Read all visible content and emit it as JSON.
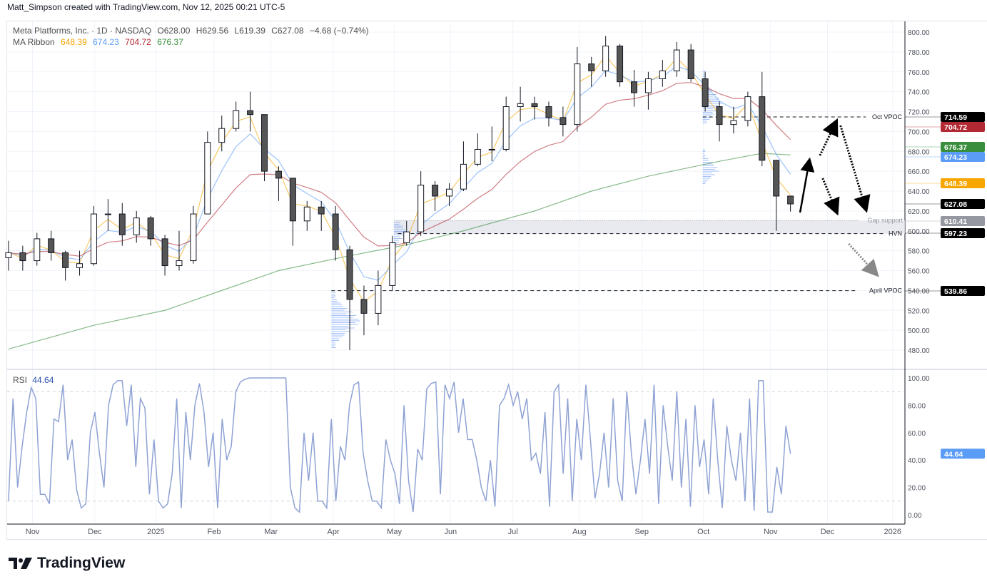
{
  "header": {
    "credit": "Matt_Simpson created with TradingView.com, Nov 12, 2025 00:21 UTC-5"
  },
  "legend": {
    "symbol": "Meta Platforms, Inc. · 1D · NASDAQ",
    "open": "O628.00",
    "high": "H629.56",
    "low": "L619.39",
    "close": "C627.08",
    "change": "−4.68 (−0.74%)",
    "ma_label": "MA Ribbon",
    "ma_values": [
      "648.39",
      "674.23",
      "704.72",
      "676.37"
    ],
    "ma_colors": [
      "#f7a600",
      "#5b9cf6",
      "#b22833",
      "#388e3c"
    ]
  },
  "rsi": {
    "label": "RSI",
    "value": "44.64",
    "color": "#8fa2d4",
    "tag_color": "#5b9cf6",
    "levels": [
      90,
      10
    ],
    "ticks": [
      "100.00",
      "80.00",
      "60.00",
      "40.00",
      "20.00",
      "0.00"
    ],
    "values": [
      10,
      85,
      20,
      50,
      75,
      93,
      85,
      15,
      15,
      8,
      70,
      68,
      95,
      40,
      55,
      18,
      5,
      8,
      60,
      75,
      45,
      20,
      80,
      95,
      98,
      98,
      65,
      95,
      35,
      85,
      78,
      15,
      55,
      10,
      5,
      8,
      30,
      85,
      5,
      75,
      40,
      80,
      96,
      75,
      35,
      60,
      5,
      70,
      40,
      50,
      90,
      97,
      99,
      100,
      100,
      100,
      100,
      100,
      100,
      100,
      100,
      100,
      20,
      5,
      2,
      60,
      25,
      60,
      10,
      10,
      5,
      70,
      10,
      50,
      40,
      80,
      95,
      97,
      45,
      25,
      10,
      10,
      5,
      55,
      40,
      30,
      8,
      80,
      25,
      2,
      48,
      40,
      92,
      96,
      97,
      15,
      95,
      85,
      97,
      60,
      85,
      55,
      55,
      40,
      20,
      10,
      40,
      6,
      80,
      85,
      95,
      80,
      90,
      70,
      85,
      40,
      45,
      30,
      75,
      6,
      90,
      95,
      30,
      85,
      10,
      70,
      40,
      95,
      55,
      12,
      30,
      60,
      20,
      85,
      25,
      10,
      90,
      45,
      15,
      40,
      70,
      30,
      95,
      8,
      80,
      50,
      25,
      90,
      20,
      70,
      6,
      80,
      35,
      55,
      15,
      85,
      40,
      5,
      65,
      40,
      25,
      60,
      10,
      85,
      3,
      98,
      98,
      2,
      2,
      35,
      15,
      65,
      44.64
    ]
  },
  "price_axis": {
    "ticks": [
      800,
      780,
      760,
      740,
      720,
      700,
      680,
      660,
      640,
      620,
      600,
      580,
      560,
      540,
      520,
      500,
      480
    ]
  },
  "time_axis": {
    "labels": [
      "Nov",
      "Dec",
      "2025",
      "Feb",
      "Mar",
      "Apr",
      "May",
      "Jun",
      "Jul",
      "Aug",
      "Sep",
      "Oct",
      "Nov",
      "Dec",
      "2026"
    ]
  },
  "annotations": {
    "oct_vpoc": {
      "label": "Oct VPOC",
      "price": "714.59"
    },
    "hvn": {
      "label": "HVN",
      "price": "597.23"
    },
    "april_vpoc": {
      "label": "April VPOC",
      "price": "539.86"
    },
    "gap_support": {
      "label": "Gap support",
      "price": "610.41"
    }
  },
  "price_tags": [
    {
      "value": "714.59",
      "color": "#000000"
    },
    {
      "value": "704.72",
      "color": "#b22833"
    },
    {
      "value": "676.37",
      "color": "#388e3c"
    },
    {
      "value": "674.23",
      "color": "#5b9cf6"
    },
    {
      "value": "648.39",
      "color": "#f7a600"
    },
    {
      "value": "627.08",
      "color": "#000000"
    },
    {
      "value": "610.41",
      "color": "#9598a1"
    },
    {
      "value": "597.23",
      "color": "#000000"
    },
    {
      "value": "539.86",
      "color": "#000000"
    }
  ],
  "chart_data": {
    "type": "candlestick",
    "title": "Meta Platforms, Inc. · 1D · NASDAQ",
    "ylim": [
      470,
      810
    ],
    "grid": true,
    "weeks": [
      "2024-10-21",
      "2024-10-28",
      "2024-11-04",
      "2024-11-11",
      "2024-11-18",
      "2024-11-25",
      "2024-12-02",
      "2024-12-09",
      "2024-12-16",
      "2024-12-23",
      "2024-12-30",
      "2025-01-06",
      "2025-01-13",
      "2025-01-20",
      "2025-01-27",
      "2025-02-03",
      "2025-02-10",
      "2025-02-17",
      "2025-02-24",
      "2025-03-03",
      "2025-03-10",
      "2025-03-17",
      "2025-03-24",
      "2025-03-31",
      "2025-04-07",
      "2025-04-14",
      "2025-04-21",
      "2025-04-28",
      "2025-05-05",
      "2025-05-12",
      "2025-05-19",
      "2025-05-26",
      "2025-06-02",
      "2025-06-09",
      "2025-06-16",
      "2025-06-23",
      "2025-06-30",
      "2025-07-07",
      "2025-07-14",
      "2025-07-21",
      "2025-07-28",
      "2025-08-04",
      "2025-08-11",
      "2025-08-18",
      "2025-08-25",
      "2025-09-01",
      "2025-09-08",
      "2025-09-15",
      "2025-09-22",
      "2025-09-29",
      "2025-10-06",
      "2025-10-13",
      "2025-10-20",
      "2025-10-27",
      "2025-11-03",
      "2025-11-10"
    ],
    "close": [
      578,
      570,
      592,
      578,
      563,
      567,
      617,
      617,
      596,
      613,
      592,
      565,
      570,
      617,
      689,
      703,
      721,
      717,
      660,
      653,
      610,
      624,
      617,
      581,
      531,
      517,
      545,
      588,
      599,
      646,
      635,
      642,
      667,
      682,
      682,
      725,
      728,
      725,
      714,
      707,
      768,
      761,
      786,
      750,
      739,
      753,
      761,
      782,
      753,
      725,
      707,
      711,
      735,
      671,
      635,
      627.08
    ],
    "high": [
      590,
      585,
      598,
      600,
      580,
      580,
      625,
      632,
      628,
      620,
      615,
      596,
      600,
      625,
      700,
      716,
      730,
      740,
      715,
      665,
      640,
      630,
      630,
      625,
      585,
      545,
      560,
      595,
      610,
      660,
      650,
      648,
      690,
      698,
      705,
      735,
      745,
      735,
      730,
      725,
      785,
      775,
      796,
      788,
      762,
      760,
      772,
      790,
      788,
      760,
      730,
      725,
      740,
      760,
      670,
      632
    ],
    "low": [
      560,
      560,
      565,
      570,
      550,
      555,
      565,
      600,
      585,
      588,
      585,
      555,
      560,
      567,
      660,
      680,
      700,
      700,
      650,
      630,
      585,
      600,
      600,
      570,
      480,
      495,
      505,
      540,
      585,
      595,
      620,
      625,
      640,
      665,
      670,
      680,
      710,
      712,
      705,
      695,
      700,
      745,
      755,
      745,
      725,
      722,
      745,
      755,
      750,
      720,
      690,
      698,
      705,
      665,
      600,
      619.39
    ],
    "ma_ribbon": {
      "values": [
        "648.39",
        "674.23",
        "704.72",
        "676.37"
      ],
      "long_ma_anchors": [
        [
          "2024-10-21",
          481
        ],
        [
          "2024-12-02",
          505
        ],
        [
          "2025-01-06",
          520
        ],
        [
          "2025-02-03",
          540
        ],
        [
          "2025-03-03",
          560
        ],
        [
          "2025-04-07",
          575
        ],
        [
          "2025-05-05",
          586
        ],
        [
          "2025-06-02",
          600
        ],
        [
          "2025-07-07",
          620
        ],
        [
          "2025-08-04",
          640
        ],
        [
          "2025-09-01",
          655
        ],
        [
          "2025-10-06",
          670
        ],
        [
          "2025-10-27",
          678
        ],
        [
          "2025-11-10",
          676.37
        ]
      ]
    },
    "levels": [
      {
        "name": "Oct VPOC",
        "value": 714.59
      },
      {
        "name": "Gap support",
        "value": 610.41
      },
      {
        "name": "HVN",
        "value": 597.23
      },
      {
        "name": "April VPOC",
        "value": 539.86
      }
    ]
  }
}
